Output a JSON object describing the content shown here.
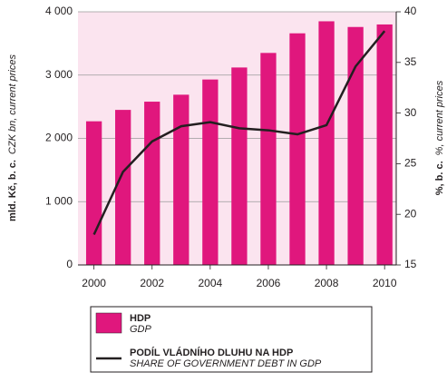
{
  "chart_data": {
    "type": "bar_line",
    "ylabel": "mld. Kč, b. c.",
    "ylabel_en": "CZK bn, current prices",
    "y2label": "%, b. c.",
    "y2label_en": "%, current prices",
    "x": [
      2000,
      2001,
      2002,
      2003,
      2004,
      2005,
      2006,
      2007,
      2008,
      2009,
      2010
    ],
    "xlim": [
      1999.45,
      2010.4
    ],
    "xticks": [
      2000,
      2002,
      2004,
      2006,
      2008,
      2010
    ],
    "ylim": [
      0,
      4000
    ],
    "yticks": [
      0,
      {
        "value": 1000,
        "label": "1 000"
      },
      {
        "value": 2000,
        "label": "2 000"
      },
      {
        "value": 3000,
        "label": "3 000"
      },
      {
        "value": 4000,
        "label": "4 000"
      }
    ],
    "y2lim": [
      15,
      40
    ],
    "y2ticks": [
      15,
      20,
      25,
      30,
      35,
      40
    ],
    "grid": true,
    "series": [
      {
        "name": "HDP",
        "name_en": "GDP",
        "type": "bar",
        "color": "#e0177d",
        "values": [
          2270,
          2450,
          2580,
          2690,
          2930,
          3120,
          3350,
          3660,
          3850,
          3760,
          3800
        ]
      },
      {
        "name": "PODÍL VLÁDNÍHO DLUHU NA HDP",
        "name_en": "SHARE OF GOVERNMENT DEBT IN GDP",
        "type": "line",
        "axis": "y2",
        "color": "#231f20",
        "values": [
          18.0,
          24.2,
          27.2,
          28.7,
          29.1,
          28.5,
          28.3,
          27.9,
          28.8,
          34.6,
          38.1
        ]
      }
    ]
  }
}
